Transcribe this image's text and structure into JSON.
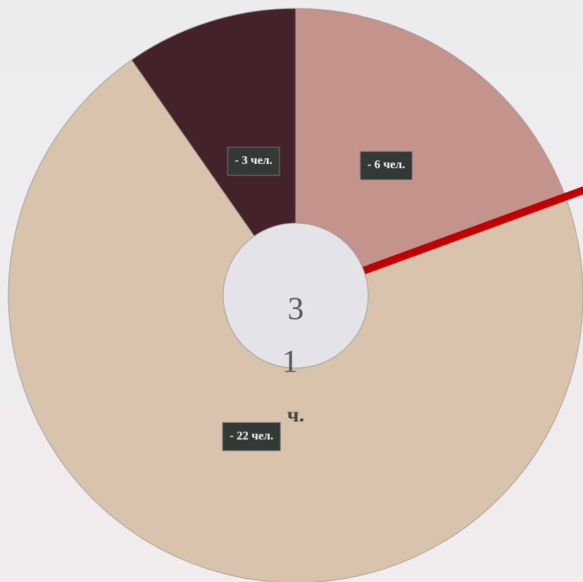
{
  "chart_data": {
    "type": "pie",
    "values": [
      6,
      22,
      3
    ],
    "value_labels": [
      "- 6 чел.",
      "- 22 чел.",
      "- 3 чел."
    ],
    "colors": [
      "#c4938c",
      "#d8c3ad",
      "#43222a"
    ],
    "center_text": [
      "3",
      "1",
      "ч."
    ]
  }
}
